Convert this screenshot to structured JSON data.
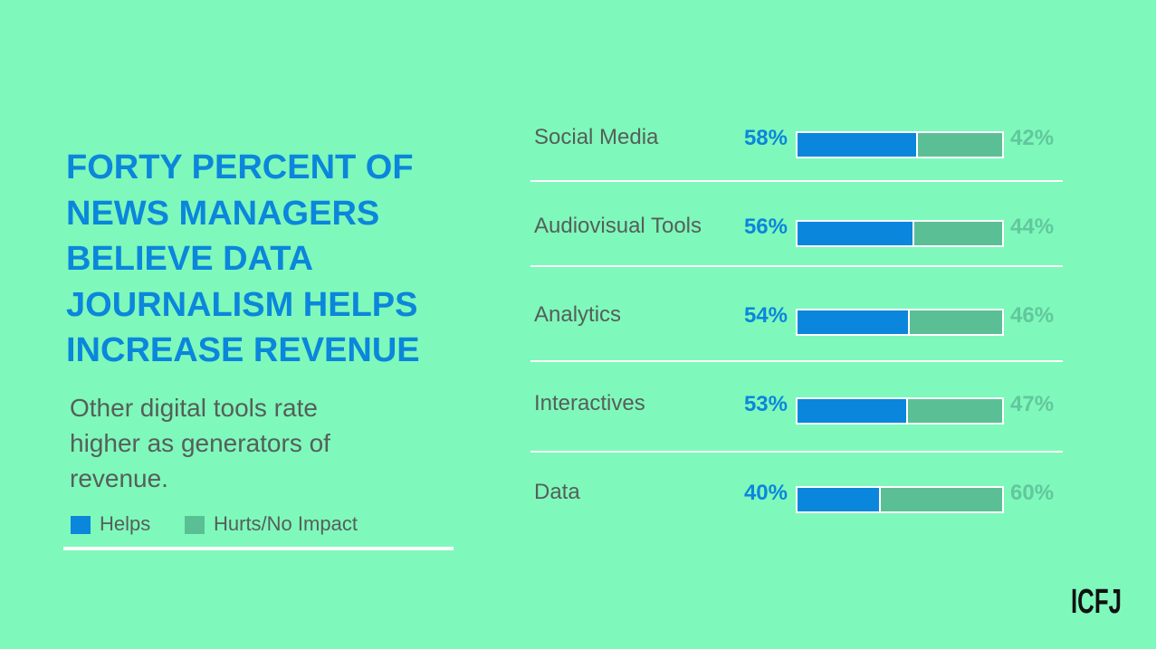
{
  "headline": {
    "lines": [
      "FORTY PERCENT OF",
      "NEWS MANAGERS",
      "BELIEVE DATA",
      "JOURNALISM HELPS",
      "INCREASE REVENUE"
    ]
  },
  "subtitle": {
    "lines": [
      "Other digital tools rate",
      "higher as generators of",
      "revenue."
    ]
  },
  "legend": {
    "helps": "Helps",
    "hurts": "Hurts/No Impact"
  },
  "colors": {
    "helps": "#0a86dc",
    "hurts": "#5bbf96",
    "background": "#7ff8bb"
  },
  "logo": "ICFJ",
  "chart_data": {
    "type": "bar",
    "orientation": "horizontal",
    "stacked": true,
    "categories": [
      "Social Media",
      "Audiovisual Tools",
      "Analytics",
      "Interactives",
      "Data"
    ],
    "series": [
      {
        "name": "Helps",
        "values": [
          58,
          56,
          54,
          53,
          40
        ]
      },
      {
        "name": "Hurts/No Impact",
        "values": [
          42,
          44,
          46,
          47,
          60
        ]
      }
    ],
    "value_labels": {
      "helps": [
        "58%",
        "56%",
        "54%",
        "53%",
        "40%"
      ],
      "hurts": [
        "42%",
        "44%",
        "46%",
        "47%",
        "60%"
      ]
    },
    "xlim": [
      0,
      100
    ],
    "grid": false,
    "legend_position": "bottom-left"
  }
}
